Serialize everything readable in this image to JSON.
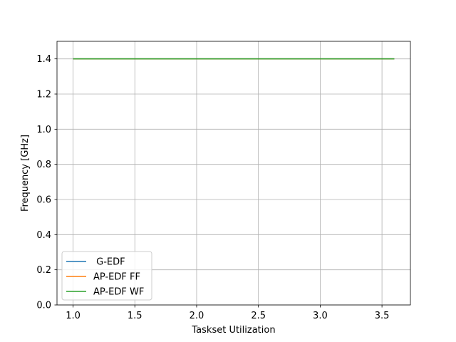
{
  "chart_data": {
    "type": "line",
    "xlabel": "Taskset Utilization",
    "ylabel": "Frequency [GHz]",
    "xlim": [
      0.87,
      3.73
    ],
    "ylim": [
      0.0,
      1.5
    ],
    "xticks": [
      "1.0",
      "1.5",
      "2.0",
      "2.5",
      "3.0",
      "3.5"
    ],
    "yticks": [
      "0.0",
      "0.2",
      "0.4",
      "0.6",
      "0.8",
      "1.0",
      "1.2",
      "1.4"
    ],
    "grid": true,
    "legend_position": "lower-left",
    "series": [
      {
        "name": " G-EDF",
        "color": "#1f77b4",
        "x": [
          1.0,
          3.6
        ],
        "y": [
          1.4,
          1.4
        ]
      },
      {
        "name": "AP-EDF FF",
        "color": "#ff7f0e",
        "x": [
          1.0,
          3.6
        ],
        "y": [
          1.4,
          1.4
        ]
      },
      {
        "name": "AP-EDF WF",
        "color": "#2ca02c",
        "x": [
          1.0,
          3.6
        ],
        "y": [
          1.4,
          1.4
        ]
      }
    ]
  }
}
